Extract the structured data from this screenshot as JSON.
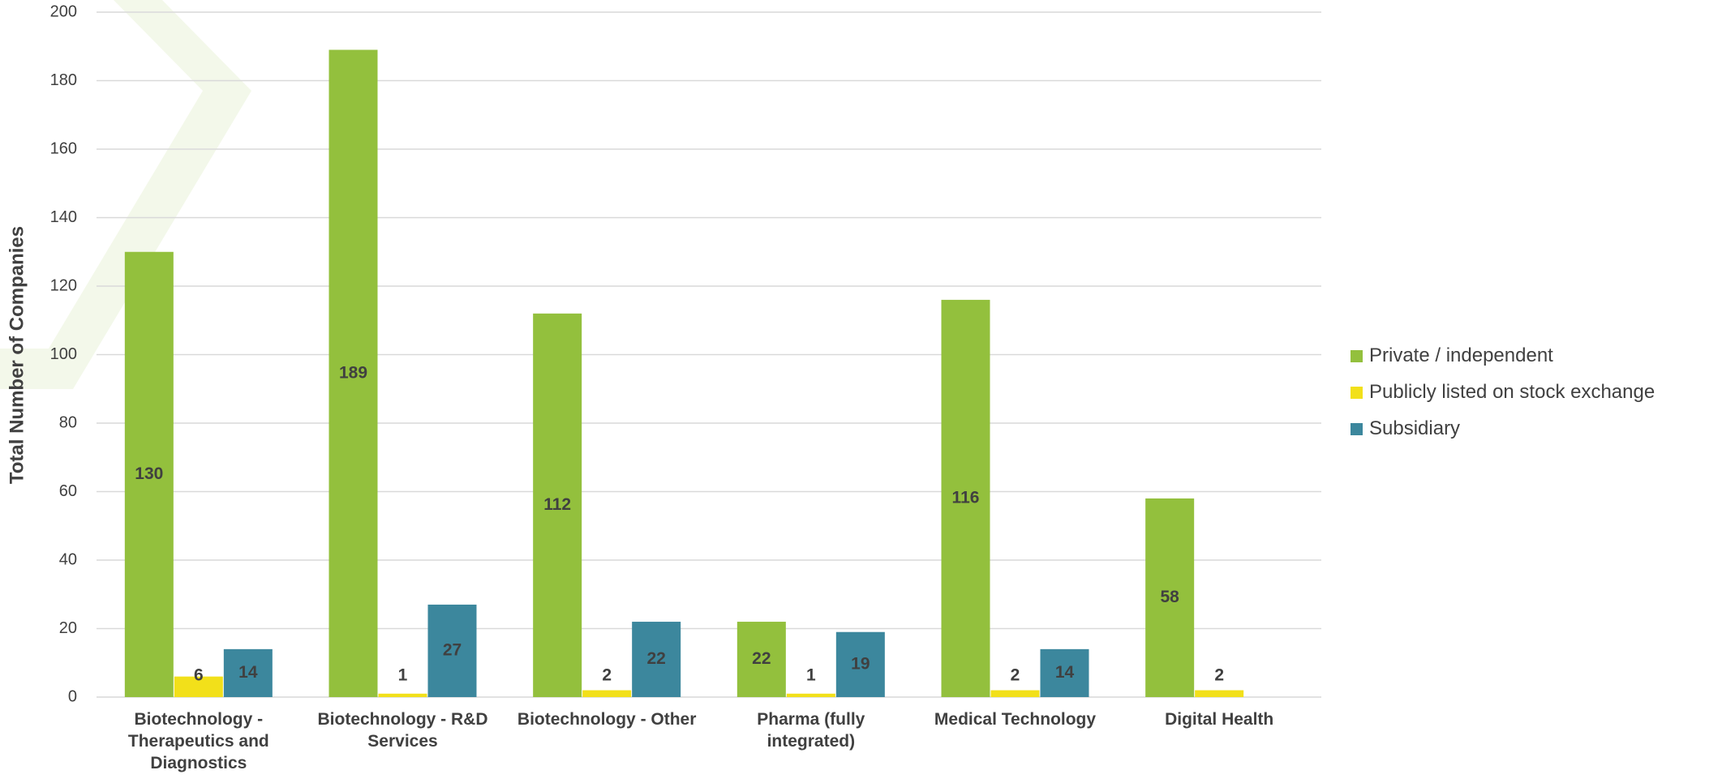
{
  "chart_data": {
    "type": "bar",
    "y_label": "Total Number of Companies",
    "categories": [
      "Biotechnology - Therapeutics and Diagnostics",
      "Biotechnology - R&D Services",
      "Biotechnology - Other",
      "Pharma (fully integrated)",
      "Medical Technology",
      "Digital Health"
    ],
    "series": [
      {
        "name": "Private / independent",
        "color": "#93c03d",
        "values": [
          130,
          189,
          112,
          22,
          116,
          58
        ]
      },
      {
        "name": "Publicly listed on stock exchange",
        "color": "#f2e01a",
        "values": [
          6,
          1,
          2,
          1,
          2,
          2
        ]
      },
      {
        "name": "Subsidiary",
        "color": "#3c879d",
        "values": [
          14,
          27,
          22,
          19,
          14,
          null
        ]
      }
    ],
    "ylim": [
      0,
      200
    ],
    "yticks": [
      0,
      20,
      40,
      60,
      80,
      100,
      120,
      140,
      160,
      180,
      200
    ],
    "grid": true,
    "legend": "right"
  }
}
